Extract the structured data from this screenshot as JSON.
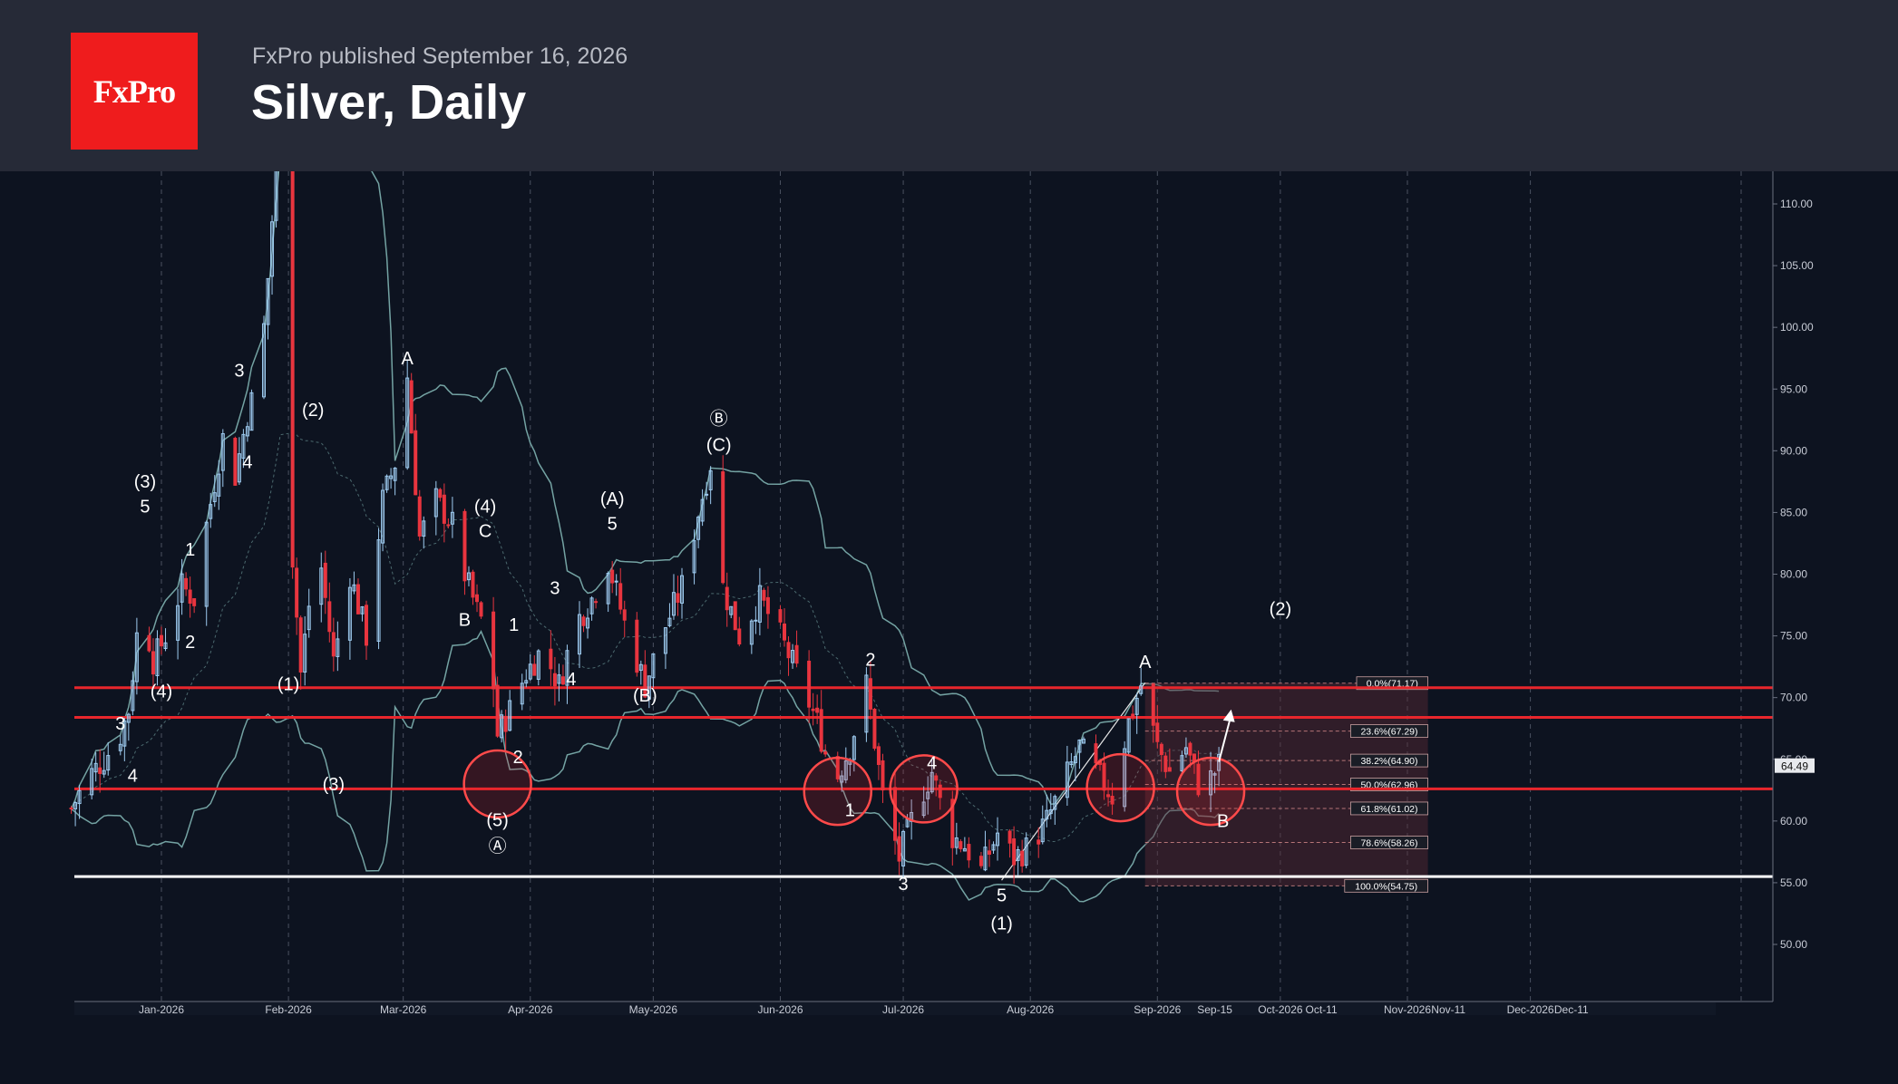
{
  "header": {
    "logo_text": "FxPro",
    "published": "FxPro published September 16, 2026",
    "title": "Silver, Daily"
  },
  "chart_data": {
    "type": "candlestick",
    "title": "Silver, Daily",
    "ylim": [
      45.5,
      112
    ],
    "y_ticks": [
      "110.00",
      "105.00",
      "100.00",
      "95.00",
      "90.00",
      "85.00",
      "80.00",
      "75.00",
      "70.00",
      "65.00",
      "60.00",
      "55.00",
      "50.00"
    ],
    "x_ticks": [
      "Jan-2026",
      "Feb-2026",
      "Mar-2026",
      "Apr-2026",
      "May-2026",
      "Jun-2026",
      "Jul-2026",
      "Aug-2026",
      "Sep-2026",
      "Sep-15",
      "Oct-2026",
      "Oct-11",
      "Nov-2026",
      "Nov-11",
      "Dec-2026",
      "Dec-11"
    ],
    "last_price": "64.49",
    "close_path": [
      [
        "2025-12-10",
        61
      ],
      [
        "2025-12-14",
        63.5
      ],
      [
        "2025-12-18",
        65
      ],
      [
        "2025-12-22",
        67
      ],
      [
        "2025-12-24",
        69
      ],
      [
        "2025-12-27",
        78
      ],
      [
        "2025-12-30",
        73
      ],
      [
        "2026-01-02",
        75
      ],
      [
        "2026-01-06",
        79
      ],
      [
        "2026-01-09",
        78
      ],
      [
        "2026-01-12",
        84
      ],
      [
        "2026-01-16",
        91
      ],
      [
        "2026-01-19",
        88
      ],
      [
        "2026-01-22",
        93
      ],
      [
        "2026-01-25",
        96
      ],
      [
        "2026-01-27",
        104
      ],
      [
        "2026-01-30",
        118
      ],
      [
        "2026-02-01",
        86
      ],
      [
        "2026-02-04",
        72
      ],
      [
        "2026-02-08",
        83
      ],
      [
        "2026-02-12",
        73
      ],
      [
        "2026-02-16",
        80
      ],
      [
        "2026-02-20",
        75
      ],
      [
        "2026-02-24",
        86
      ],
      [
        "2026-02-28",
        90
      ],
      [
        "2026-03-02",
        96
      ],
      [
        "2026-03-05",
        83
      ],
      [
        "2026-03-09",
        86
      ],
      [
        "2026-03-13",
        84
      ],
      [
        "2026-03-16",
        80
      ],
      [
        "2026-03-19",
        77
      ],
      [
        "2026-03-22",
        75
      ],
      [
        "2026-03-24",
        67
      ],
      [
        "2026-03-27",
        69
      ],
      [
        "2026-03-31",
        72
      ],
      [
        "2026-04-04",
        74
      ],
      [
        "2026-04-08",
        71
      ],
      [
        "2026-04-12",
        76
      ],
      [
        "2026-04-16",
        78
      ],
      [
        "2026-04-20",
        81
      ],
      [
        "2026-04-24",
        76
      ],
      [
        "2026-04-29",
        71
      ],
      [
        "2026-05-03",
        75
      ],
      [
        "2026-05-08",
        79
      ],
      [
        "2026-05-12",
        85
      ],
      [
        "2026-05-15",
        89
      ],
      [
        "2026-05-18",
        79
      ],
      [
        "2026-05-22",
        75
      ],
      [
        "2026-05-27",
        78
      ],
      [
        "2026-06-01",
        75
      ],
      [
        "2026-06-05",
        72
      ],
      [
        "2026-06-10",
        68
      ],
      [
        "2026-06-14",
        63
      ],
      [
        "2026-06-18",
        66
      ],
      [
        "2026-06-22",
        71
      ],
      [
        "2026-06-26",
        62
      ],
      [
        "2026-06-30",
        57
      ],
      [
        "2026-07-04",
        61
      ],
      [
        "2026-07-08",
        64
      ],
      [
        "2026-07-12",
        59
      ],
      [
        "2026-07-16",
        58
      ],
      [
        "2026-07-20",
        56
      ],
      [
        "2026-07-24",
        59
      ],
      [
        "2026-07-28",
        57
      ],
      [
        "2026-08-01",
        58
      ],
      [
        "2026-08-05",
        60
      ],
      [
        "2026-08-09",
        63
      ],
      [
        "2026-08-13",
        66
      ],
      [
        "2026-08-17",
        64
      ],
      [
        "2026-08-21",
        62
      ],
      [
        "2026-08-25",
        68
      ],
      [
        "2026-08-28",
        71
      ],
      [
        "2026-09-01",
        66
      ],
      [
        "2026-09-04",
        64
      ],
      [
        "2026-09-08",
        66
      ],
      [
        "2026-09-11",
        63
      ],
      [
        "2026-09-14",
        63.5
      ],
      [
        "2026-09-16",
        64.5
      ]
    ],
    "horizontal_lines": [
      {
        "price": 70.8,
        "color": "#e8262c"
      },
      {
        "price": 68.4,
        "color": "#e8262c"
      },
      {
        "price": 62.6,
        "color": "#e8262c"
      },
      {
        "price": 55.5,
        "color": "#ffffff"
      }
    ],
    "fibonacci": {
      "high": 71.17,
      "low": 54.75,
      "levels": [
        {
          "label": "0.0%(71.17)",
          "price": 71.17
        },
        {
          "label": "23.6%(67.29)",
          "price": 67.29
        },
        {
          "label": "38.2%(64.90)",
          "price": 64.9
        },
        {
          "label": "50.0%(62.96)",
          "price": 62.96
        },
        {
          "label": "61.8%(61.02)",
          "price": 61.02
        },
        {
          "label": "78.6%(58.26)",
          "price": 58.26
        },
        {
          "label": "100.0%(54.75)",
          "price": 54.75
        }
      ]
    },
    "circles": [
      {
        "date": "2026-03-24",
        "price": 63.0
      },
      {
        "date": "2026-06-15",
        "price": 62.4
      },
      {
        "date": "2026-07-06",
        "price": 62.6
      },
      {
        "date": "2026-08-23",
        "price": 62.7
      },
      {
        "date": "2026-09-14",
        "price": 62.4
      }
    ],
    "wave_labels": [
      {
        "text": "(3)",
        "date": "2025-12-28",
        "price": 87.0
      },
      {
        "text": "5",
        "date": "2025-12-28",
        "price": 85.0
      },
      {
        "text": "1",
        "date": "2026-01-08",
        "price": 81.5
      },
      {
        "text": "2",
        "date": "2026-01-08",
        "price": 74.0
      },
      {
        "text": "(4)",
        "date": "2026-01-01",
        "price": 70.0
      },
      {
        "text": "3",
        "date": "2025-12-22",
        "price": 67.4
      },
      {
        "text": "4",
        "date": "2025-12-25",
        "price": 63.2
      },
      {
        "text": "3",
        "date": "2026-01-20",
        "price": 96.0
      },
      {
        "text": "4",
        "date": "2026-01-22",
        "price": 88.6
      },
      {
        "text": "(2)",
        "date": "2026-02-07",
        "price": 92.8
      },
      {
        "text": "(1)",
        "date": "2026-02-01",
        "price": 70.6
      },
      {
        "text": "(3)",
        "date": "2026-02-12",
        "price": 62.5
      },
      {
        "text": "A",
        "date": "2026-03-02",
        "price": 97.0
      },
      {
        "text": "(4)",
        "date": "2026-03-21",
        "price": 85.0
      },
      {
        "text": "C",
        "date": "2026-03-21",
        "price": 83.0
      },
      {
        "text": "B",
        "date": "2026-03-16",
        "price": 75.8
      },
      {
        "text": "1",
        "date": "2026-03-28",
        "price": 75.4
      },
      {
        "text": "2",
        "date": "2026-03-29",
        "price": 64.7
      },
      {
        "text": "(5)",
        "date": "2026-03-24",
        "price": 59.6
      },
      {
        "text": "Ⓐ",
        "date": "2026-03-24",
        "price": 57.5
      },
      {
        "text": "3",
        "date": "2026-04-07",
        "price": 78.4
      },
      {
        "text": "4",
        "date": "2026-04-11",
        "price": 71.0
      },
      {
        "text": "(A)",
        "date": "2026-04-21",
        "price": 85.6
      },
      {
        "text": "5",
        "date": "2026-04-21",
        "price": 83.6
      },
      {
        "text": "(B)",
        "date": "2026-04-29",
        "price": 69.7
      },
      {
        "text": "Ⓑ",
        "date": "2026-05-17",
        "price": 92.1
      },
      {
        "text": "(C)",
        "date": "2026-05-17",
        "price": 90.0
      },
      {
        "text": "2",
        "date": "2026-06-23",
        "price": 72.6
      },
      {
        "text": "1",
        "date": "2026-06-18",
        "price": 60.4
      },
      {
        "text": "4",
        "date": "2026-07-08",
        "price": 64.2
      },
      {
        "text": "3",
        "date": "2026-07-01",
        "price": 54.4
      },
      {
        "text": "5",
        "date": "2026-07-25",
        "price": 53.5
      },
      {
        "text": "(1)",
        "date": "2026-07-25",
        "price": 51.2
      },
      {
        "text": "A",
        "date": "2026-08-29",
        "price": 72.4
      },
      {
        "text": "B",
        "date": "2026-09-17",
        "price": 59.5
      },
      {
        "text": "(2)",
        "date": "2026-10-01",
        "price": 76.7
      }
    ],
    "projection_arrow": {
      "from": [
        "2026-09-16",
        64.8
      ],
      "to": [
        "2026-09-19",
        68.6
      ]
    },
    "colors": {
      "bull": "#9ecbf0",
      "bear": "#e8353f",
      "band": "#74a3a3",
      "grid": "#4a5160",
      "label": "#ffffff",
      "fib_box": "#5a2a35"
    }
  }
}
